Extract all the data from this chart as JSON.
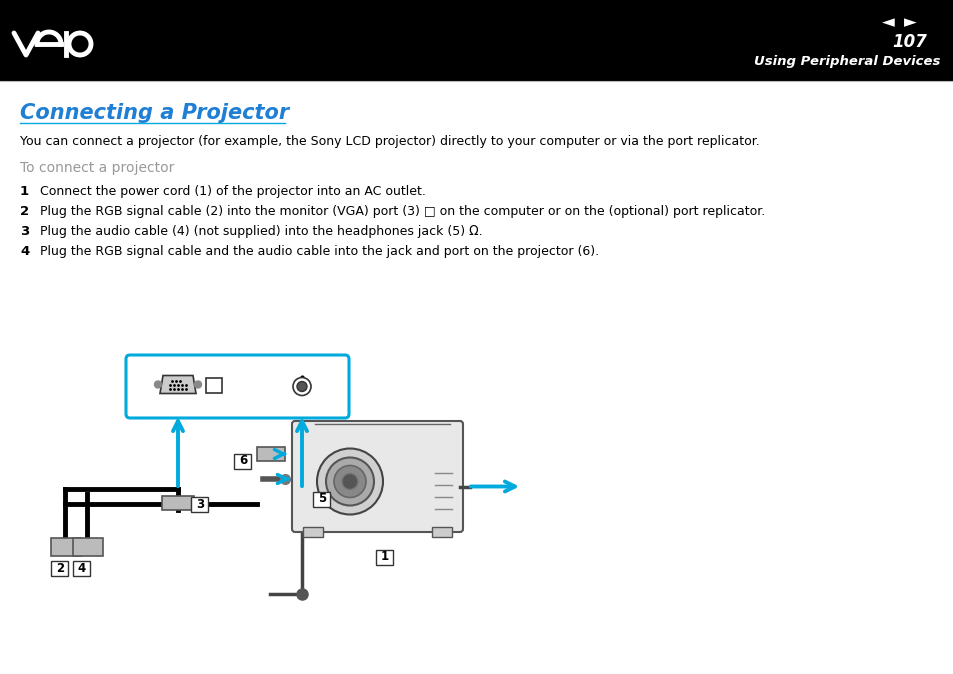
{
  "bg_color": "#ffffff",
  "header_bg": "#000000",
  "page_number": "107",
  "page_subtitle": "Using Peripheral Devices",
  "title": "Connecting a Projector",
  "title_color": "#1e7fd4",
  "body_color": "#000000",
  "gray_color": "#999999",
  "cyan_color": "#00aadd",
  "intro_text": "You can connect a projector (for example, the Sony LCD projector) directly to your computer or via the port replicator.",
  "subheading": "To connect a projector",
  "steps": [
    "Connect the power cord (1) of the projector into an AC outlet.",
    "Plug the RGB signal cable (2) into the monitor (VGA) port (3) □ on the computer or on the (optional) port replicator.",
    "Plug the audio cable (4) (not supplied) into the headphones jack (5) Ω.",
    "Plug the RGB signal cable and the audio cable into the jack and port on the projector (6)."
  ]
}
